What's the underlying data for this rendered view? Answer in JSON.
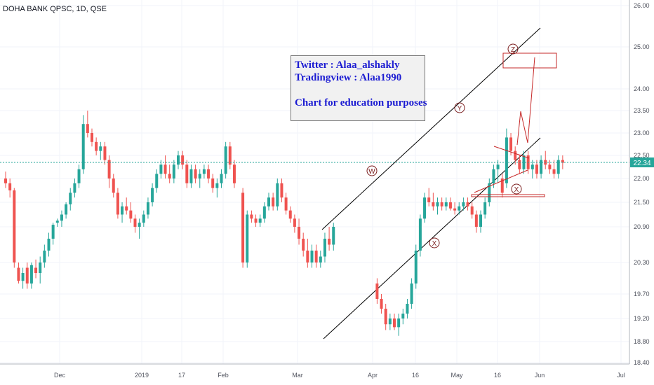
{
  "symbol_title": "DOHA BANK QPSC, 1D, QSE",
  "note": {
    "line1": "Twitter : Alaa_alshakly",
    "line2": "Tradingview : Alaa1990",
    "line3": "Chart for education purposes"
  },
  "colors": {
    "up": "#26a69a",
    "down": "#ef5350",
    "annotation": "#c62828",
    "price_line": "#26a69a",
    "channel": "#000000"
  },
  "chart_data": {
    "type": "candlestick",
    "title": "DOHA BANK QPSC, 1D, QSE",
    "x_tick_labels": [
      "Dec",
      "2019",
      "17",
      "Feb",
      "Mar",
      "Apr",
      "16",
      "May",
      "16",
      "Jun",
      "Jul"
    ],
    "y_tick_labels": [
      "26.00",
      "25.00",
      "24.00",
      "23.50",
      "23.00",
      "22.50",
      "22.00",
      "21.50",
      "20.90",
      "20.30",
      "19.70",
      "19.20",
      "18.80",
      "18.40"
    ],
    "y_tick_values": [
      26.0,
      25.0,
      24.0,
      23.5,
      23.0,
      22.5,
      22.0,
      21.5,
      20.9,
      20.3,
      19.7,
      19.2,
      18.8,
      18.4
    ],
    "y_range": [
      18.4,
      26.1
    ],
    "last_price": "22.34",
    "wave_labels": [
      "W",
      "X",
      "Y",
      "X",
      "Z"
    ],
    "candles_ohlc": [
      [
        22.0,
        22.15,
        21.8,
        21.9
      ],
      [
        21.9,
        22.0,
        21.6,
        21.75
      ],
      [
        21.75,
        21.8,
        20.2,
        20.3
      ],
      [
        20.2,
        20.3,
        19.9,
        19.95
      ],
      [
        19.95,
        20.2,
        19.8,
        20.1
      ],
      [
        20.2,
        20.3,
        19.8,
        19.9
      ],
      [
        19.9,
        20.3,
        19.8,
        20.25
      ],
      [
        20.2,
        20.35,
        20.0,
        20.1
      ],
      [
        20.1,
        20.4,
        19.9,
        20.3
      ],
      [
        20.3,
        20.6,
        20.2,
        20.5
      ],
      [
        20.5,
        20.8,
        20.4,
        20.7
      ],
      [
        20.7,
        21.0,
        20.6,
        20.95
      ],
      [
        21.0,
        21.1,
        20.9,
        21.05
      ],
      [
        21.05,
        21.3,
        20.9,
        21.2
      ],
      [
        21.2,
        21.5,
        21.1,
        21.45
      ],
      [
        21.45,
        21.8,
        21.3,
        21.7
      ],
      [
        21.7,
        22.0,
        21.6,
        21.9
      ],
      [
        21.9,
        22.3,
        21.8,
        22.2
      ],
      [
        22.2,
        23.4,
        22.1,
        23.2
      ],
      [
        23.2,
        23.5,
        22.9,
        23.0
      ],
      [
        23.0,
        23.1,
        22.7,
        22.8
      ],
      [
        22.8,
        22.9,
        22.5,
        22.6
      ],
      [
        22.6,
        22.8,
        22.4,
        22.7
      ],
      [
        22.7,
        22.8,
        22.3,
        22.4
      ],
      [
        22.4,
        22.5,
        21.8,
        22.0
      ],
      [
        22.0,
        22.1,
        21.6,
        21.7
      ],
      [
        21.7,
        21.8,
        21.1,
        21.2
      ],
      [
        21.2,
        21.5,
        21.0,
        21.4
      ],
      [
        21.4,
        21.6,
        21.2,
        21.3
      ],
      [
        21.3,
        21.5,
        21.0,
        21.1
      ],
      [
        21.1,
        21.2,
        20.8,
        20.9
      ],
      [
        20.9,
        21.1,
        20.7,
        21.0
      ],
      [
        21.0,
        21.3,
        20.9,
        21.2
      ],
      [
        21.2,
        21.6,
        21.1,
        21.5
      ],
      [
        21.5,
        21.9,
        21.4,
        21.8
      ],
      [
        21.8,
        22.2,
        21.7,
        22.1
      ],
      [
        22.1,
        22.4,
        22.0,
        22.3
      ],
      [
        22.3,
        22.5,
        22.0,
        22.1
      ],
      [
        22.1,
        22.3,
        21.9,
        22.0
      ],
      [
        22.0,
        22.4,
        21.9,
        22.3
      ],
      [
        22.3,
        22.6,
        22.2,
        22.5
      ],
      [
        22.5,
        22.6,
        22.2,
        22.3
      ],
      [
        22.3,
        22.4,
        21.8,
        21.9
      ],
      [
        21.9,
        22.3,
        21.8,
        22.2
      ],
      [
        22.2,
        22.3,
        21.9,
        22.0
      ],
      [
        22.0,
        22.2,
        21.8,
        22.1
      ],
      [
        22.1,
        22.3,
        22.0,
        22.2
      ],
      [
        22.2,
        22.3,
        21.9,
        22.0
      ],
      [
        22.0,
        22.1,
        21.7,
        21.8
      ],
      [
        21.8,
        22.0,
        21.6,
        21.9
      ],
      [
        21.9,
        22.2,
        21.8,
        22.1
      ],
      [
        22.1,
        22.8,
        22.0,
        22.7
      ],
      [
        22.7,
        22.8,
        22.2,
        22.3
      ],
      [
        22.3,
        22.4,
        21.8,
        21.9
      ],
      [
        21.7,
        21.8,
        20.2,
        20.3
      ],
      [
        20.3,
        21.3,
        20.2,
        21.2
      ],
      [
        21.2,
        21.3,
        21.0,
        21.1
      ],
      [
        21.1,
        21.2,
        20.9,
        21.0
      ],
      [
        21.0,
        21.2,
        20.9,
        21.1
      ],
      [
        21.1,
        21.5,
        21.0,
        21.4
      ],
      [
        21.4,
        21.7,
        21.3,
        21.6
      ],
      [
        21.6,
        21.7,
        21.3,
        21.4
      ],
      [
        21.4,
        22.0,
        21.3,
        21.9
      ],
      [
        21.9,
        22.0,
        21.5,
        21.6
      ],
      [
        21.6,
        21.7,
        21.2,
        21.3
      ],
      [
        21.3,
        21.4,
        21.0,
        21.1
      ],
      [
        21.1,
        21.2,
        20.8,
        20.9
      ],
      [
        20.9,
        21.1,
        20.6,
        20.7
      ],
      [
        20.7,
        20.8,
        20.4,
        20.5
      ],
      [
        20.5,
        20.7,
        20.2,
        20.3
      ],
      [
        20.3,
        20.6,
        20.2,
        20.5
      ],
      [
        20.5,
        20.6,
        20.2,
        20.3
      ],
      [
        20.3,
        20.5,
        20.2,
        20.4
      ],
      [
        20.4,
        20.8,
        20.3,
        20.7
      ],
      [
        20.7,
        20.9,
        20.5,
        20.6
      ],
      [
        20.6,
        21.0,
        20.5,
        20.9
      ],
      [
        19.9,
        20.0,
        19.5,
        19.6
      ],
      [
        19.6,
        19.7,
        19.3,
        19.4
      ],
      [
        19.4,
        19.5,
        19.0,
        19.1
      ],
      [
        19.1,
        19.3,
        19.0,
        19.2
      ],
      [
        19.2,
        19.3,
        19.0,
        19.05
      ],
      [
        19.05,
        19.3,
        18.9,
        19.2
      ],
      [
        19.2,
        19.4,
        19.1,
        19.3
      ],
      [
        19.3,
        19.6,
        19.2,
        19.5
      ],
      [
        19.5,
        20.0,
        19.4,
        19.9
      ],
      [
        19.9,
        20.6,
        19.8,
        20.5
      ],
      [
        20.5,
        21.2,
        20.4,
        21.1
      ],
      [
        21.1,
        21.7,
        21.0,
        21.6
      ],
      [
        21.6,
        21.8,
        21.4,
        21.5
      ],
      [
        21.5,
        21.7,
        21.3,
        21.4
      ],
      [
        21.4,
        21.6,
        21.2,
        21.5
      ],
      [
        21.5,
        21.6,
        21.3,
        21.4
      ],
      [
        21.4,
        21.6,
        21.3,
        21.5
      ],
      [
        21.5,
        21.6,
        21.3,
        21.35
      ],
      [
        21.35,
        21.5,
        21.2,
        21.3
      ],
      [
        21.3,
        21.5,
        21.2,
        21.4
      ],
      [
        21.4,
        21.6,
        21.3,
        21.5
      ],
      [
        21.5,
        21.6,
        21.3,
        21.4
      ],
      [
        21.4,
        21.5,
        21.1,
        21.2
      ],
      [
        21.2,
        21.3,
        20.8,
        20.9
      ],
      [
        20.9,
        21.3,
        20.8,
        21.2
      ],
      [
        21.2,
        21.6,
        21.1,
        21.5
      ],
      [
        21.5,
        22.0,
        21.4,
        21.9
      ],
      [
        21.9,
        22.3,
        21.8,
        22.2
      ],
      [
        22.2,
        22.4,
        21.9,
        22.3
      ],
      [
        22.0,
        22.1,
        21.6,
        21.7
      ],
      [
        21.9,
        23.1,
        21.8,
        22.9
      ],
      [
        22.9,
        23.0,
        22.5,
        22.6
      ],
      [
        22.6,
        22.7,
        22.3,
        22.4
      ],
      [
        22.4,
        22.5,
        22.1,
        22.2
      ],
      [
        22.2,
        22.6,
        22.1,
        22.5
      ],
      [
        22.5,
        22.6,
        22.1,
        22.2
      ],
      [
        22.2,
        22.4,
        22.0,
        22.3
      ],
      [
        22.3,
        22.4,
        22.0,
        22.1
      ],
      [
        22.1,
        22.5,
        22.0,
        22.4
      ],
      [
        22.4,
        22.6,
        22.2,
        22.3
      ],
      [
        22.3,
        22.4,
        22.1,
        22.2
      ],
      [
        22.2,
        22.4,
        22.0,
        22.1
      ],
      [
        22.1,
        22.5,
        22.0,
        22.4
      ],
      [
        22.4,
        22.5,
        22.2,
        22.34
      ]
    ]
  }
}
